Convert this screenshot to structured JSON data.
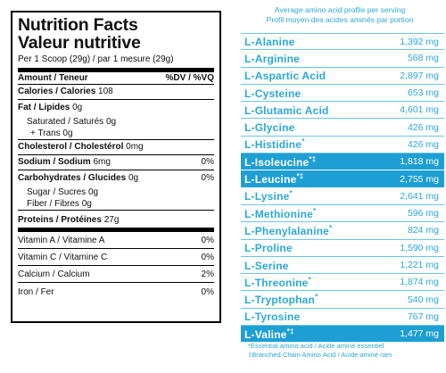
{
  "nutrition": {
    "title_en": "Nutrition Facts",
    "title_fr": "Valeur nutritive",
    "serving": "Per 1 Scoop (29g) / par 1 mesure (29g)",
    "header_amount": "Amount / Teneur",
    "header_dv": "%DV / %VQ",
    "rows": [
      {
        "label": "Calories / Calories",
        "value": "108",
        "dv": ""
      },
      {
        "label": "Fat / Lipides",
        "value": "0g",
        "dv": ""
      },
      {
        "label": "Saturated / Saturés",
        "value": "0g",
        "dv": ""
      },
      {
        "label": "+ Trans",
        "value": "0g",
        "dv": ""
      },
      {
        "label": "Cholesterol / Cholestérol",
        "value": "0mg",
        "dv": ""
      },
      {
        "label": "Sodium / Sodium",
        "value": "6mg",
        "dv": "0%"
      },
      {
        "label": "Carbohydrates / Glucides",
        "value": "0g",
        "dv": "0%"
      },
      {
        "label": "Sugar / Sucres",
        "value": "0g",
        "dv": ""
      },
      {
        "label": "Fiber / Fibres",
        "value": "0g",
        "dv": ""
      },
      {
        "label": "Proteins / Protéines",
        "value": "27g",
        "dv": ""
      }
    ],
    "vitamins": [
      {
        "label": "Vitamin A / Vitamine A",
        "dv": "0%"
      },
      {
        "label": "Vitamin C / Vitamine C",
        "dv": "0%"
      },
      {
        "label": "Calcium / Calcium",
        "dv": "2%"
      },
      {
        "label": "Iron / Fer",
        "dv": "0%"
      }
    ]
  },
  "amino": {
    "header_en": "Average amino acid profile per serving",
    "header_fr": "Profil moyen des acides aminés par portion",
    "items": [
      {
        "name": "L-Alanine",
        "mark": "",
        "value": "1,392 mg",
        "highlight": false
      },
      {
        "name": "L-Arginine",
        "mark": "",
        "value": "568 mg",
        "highlight": false
      },
      {
        "name": "L-Aspartic Acid",
        "mark": "",
        "value": "2,897 mg",
        "highlight": false
      },
      {
        "name": "L-Cysteine",
        "mark": "",
        "value": "653 mg",
        "highlight": false
      },
      {
        "name": "L-Glutamic Acid",
        "mark": "",
        "value": "4,601 mg",
        "highlight": false
      },
      {
        "name": "L-Glycine",
        "mark": "",
        "value": "426 mg",
        "highlight": false
      },
      {
        "name": "L-Histidine",
        "mark": "*",
        "value": "426 mg",
        "highlight": false
      },
      {
        "name": "L-Isoleucine",
        "mark": "*‡",
        "value": "1,818 mg",
        "highlight": true
      },
      {
        "name": "L-Leucine",
        "mark": "*‡",
        "value": "2,755 mg",
        "highlight": true
      },
      {
        "name": "L-Lysine",
        "mark": "*",
        "value": "2,641 mg",
        "highlight": false
      },
      {
        "name": "L-Methionine",
        "mark": "*",
        "value": "596 mg",
        "highlight": false
      },
      {
        "name": "L-Phenylalanine",
        "mark": "*",
        "value": "824 mg",
        "highlight": false
      },
      {
        "name": "L-Proline",
        "mark": "",
        "value": "1,590 mg",
        "highlight": false
      },
      {
        "name": "L-Serine",
        "mark": "",
        "value": "1,221 mg",
        "highlight": false
      },
      {
        "name": "L-Threonine",
        "mark": "*",
        "value": "1,874 mg",
        "highlight": false
      },
      {
        "name": "L-Tryptophan",
        "mark": "*",
        "value": "540 mg",
        "highlight": false
      },
      {
        "name": "L-Tyrosine",
        "mark": "",
        "value": "767 mg",
        "highlight": false
      },
      {
        "name": "L-Valine",
        "mark": "*‡",
        "value": "1,477 mg",
        "highlight": true
      }
    ],
    "footnote1": "*Essential amino acid / Acide aminé essentiel",
    "footnote2": "‡Branched Chain Amino Acid / Acide aminé ram"
  },
  "colors": {
    "accent": "#2aa8d6",
    "highlight": "#1e9fd3"
  }
}
